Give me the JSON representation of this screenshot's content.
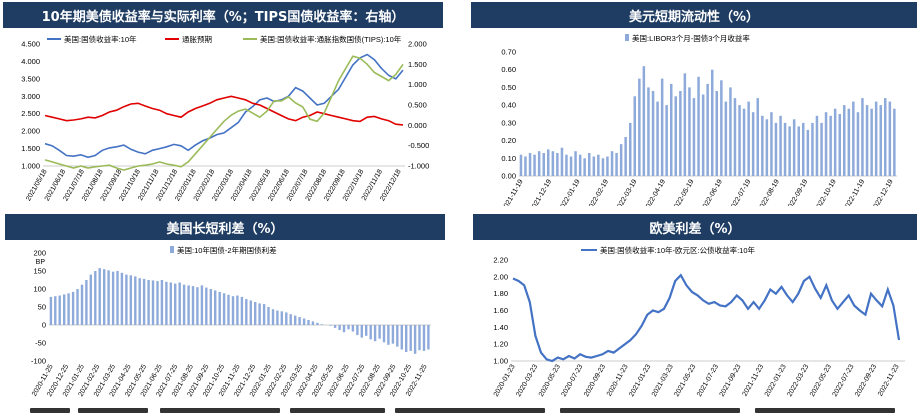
{
  "chart_data": [
    {
      "type": "line",
      "title": "10年期美债收益率与实际利率（%；TIPS国债收益率：右轴）",
      "left_ylim": [
        1.0,
        4.5
      ],
      "left_yticks": [
        "1.000",
        "1.500",
        "2.000",
        "2.500",
        "3.000",
        "3.500",
        "4.000",
        "4.500"
      ],
      "right_ylim": [
        -1.0,
        2.0
      ],
      "right_yticks": [
        "-1.000",
        "-0.500",
        "0.000",
        "0.500",
        "1.000",
        "1.500",
        "2.000"
      ],
      "x_ticks": [
        "2021/05/18",
        "2021/06/18",
        "2021/07/18",
        "2021/08/18",
        "2021/09/18",
        "2021/10/18",
        "2021/11/18",
        "2021/12/18",
        "2022/01/18",
        "2022/02/18",
        "2022/03/18",
        "2022/04/18",
        "2022/05/18",
        "2022/06/18",
        "2022/07/18",
        "2022/08/18",
        "2022/09/18",
        "2022/10/18",
        "2022/11/18",
        "2022/12/18"
      ],
      "series": [
        {
          "name": "美国:国债收益率:10年",
          "axis": "left",
          "color": "#4472c4",
          "values": [
            1.64,
            1.58,
            1.45,
            1.3,
            1.28,
            1.32,
            1.25,
            1.3,
            1.45,
            1.52,
            1.55,
            1.6,
            1.48,
            1.4,
            1.35,
            1.45,
            1.5,
            1.55,
            1.62,
            1.58,
            1.45,
            1.6,
            1.72,
            1.8,
            1.9,
            1.95,
            2.1,
            2.25,
            2.55,
            2.7,
            2.9,
            2.95,
            2.85,
            2.9,
            3.0,
            3.25,
            3.15,
            2.95,
            2.75,
            2.8,
            3.0,
            3.2,
            3.55,
            3.9,
            4.1,
            4.2,
            4.05,
            3.8,
            3.6,
            3.5,
            3.75
          ]
        },
        {
          "name": "通胀预期",
          "axis": "left",
          "color": "#e00000",
          "values": [
            2.45,
            2.4,
            2.35,
            2.3,
            2.32,
            2.35,
            2.4,
            2.38,
            2.45,
            2.55,
            2.6,
            2.7,
            2.78,
            2.8,
            2.72,
            2.65,
            2.6,
            2.5,
            2.45,
            2.4,
            2.55,
            2.65,
            2.72,
            2.8,
            2.9,
            2.95,
            3.0,
            2.95,
            2.9,
            2.8,
            2.75,
            2.65,
            2.55,
            2.45,
            2.35,
            2.3,
            2.4,
            2.45,
            2.55,
            2.5,
            2.45,
            2.4,
            2.35,
            2.3,
            2.28,
            2.4,
            2.42,
            2.35,
            2.3,
            2.2,
            2.18
          ]
        },
        {
          "name": "美国:国债收益率:通胀指数国债(TIPS):10年",
          "axis": "right",
          "color": "#9bbb59",
          "values": [
            -0.85,
            -0.9,
            -0.95,
            -1.0,
            -1.05,
            -1.0,
            -1.05,
            -1.02,
            -1.0,
            -0.98,
            -1.05,
            -1.1,
            -1.05,
            -1.0,
            -0.98,
            -0.95,
            -0.9,
            -0.95,
            -0.98,
            -1.02,
            -0.9,
            -0.7,
            -0.5,
            -0.3,
            -0.1,
            0.1,
            0.25,
            0.35,
            0.4,
            0.3,
            0.2,
            0.35,
            0.6,
            0.6,
            0.7,
            0.55,
            0.45,
            0.15,
            0.1,
            0.3,
            0.7,
            1.1,
            1.4,
            1.7,
            1.65,
            1.5,
            1.3,
            1.2,
            1.1,
            1.25,
            1.5
          ]
        }
      ]
    },
    {
      "type": "bar",
      "title": "美元短期流动性（%）",
      "ylim": [
        0.0,
        0.7
      ],
      "yticks": [
        "0.00",
        "0.10",
        "0.20",
        "0.30",
        "0.40",
        "0.50",
        "0.60",
        "0.70"
      ],
      "x_ticks": [
        "2021-11-19",
        "2021-12-19",
        "2022-01-19",
        "2022-02-19",
        "2022-03-19",
        "2022-04-19",
        "2022-05-19",
        "2022-06-19",
        "2022-07-19",
        "2022-08-19",
        "2022-09-19",
        "2022-10-19",
        "2022-11-19",
        "2022-12-19"
      ],
      "series": [
        {
          "name": "美国:LIBOR3个月-国债3个月收益率",
          "color": "#8eaadb",
          "values": [
            0.12,
            0.11,
            0.13,
            0.12,
            0.14,
            0.13,
            0.15,
            0.14,
            0.13,
            0.16,
            0.12,
            0.11,
            0.14,
            0.12,
            0.1,
            0.13,
            0.11,
            0.12,
            0.1,
            0.11,
            0.14,
            0.13,
            0.18,
            0.22,
            0.3,
            0.45,
            0.55,
            0.62,
            0.5,
            0.48,
            0.42,
            0.55,
            0.4,
            0.52,
            0.45,
            0.48,
            0.58,
            0.5,
            0.44,
            0.56,
            0.46,
            0.52,
            0.6,
            0.48,
            0.54,
            0.42,
            0.5,
            0.44,
            0.4,
            0.38,
            0.42,
            0.36,
            0.44,
            0.34,
            0.32,
            0.36,
            0.3,
            0.34,
            0.3,
            0.28,
            0.32,
            0.28,
            0.3,
            0.26,
            0.3,
            0.34,
            0.3,
            0.36,
            0.34,
            0.38,
            0.35,
            0.4,
            0.38,
            0.42,
            0.36,
            0.44,
            0.4,
            0.38,
            0.42,
            0.4,
            0.44,
            0.42,
            0.38
          ]
        }
      ]
    },
    {
      "type": "bar",
      "title": "美国长短利差（%）",
      "ylim": [
        -100,
        200
      ],
      "yticks": [
        "-100",
        "-50",
        "0",
        "50",
        "100",
        "150",
        "200"
      ],
      "y_unit": "BP",
      "x_ticks": [
        "2020-11-25",
        "2020-12-25",
        "2021-01-25",
        "2021-02-25",
        "2021-03-25",
        "2021-04-25",
        "2021-05-25",
        "2021-06-25",
        "2021-07-25",
        "2021-08-25",
        "2021-09-25",
        "2021-10-25",
        "2021-11-25",
        "2021-12-25",
        "2022-01-25",
        "2022-02-25",
        "2022-03-25",
        "2022-04-25",
        "2022-05-25",
        "2022-06-25",
        "2022-07-25",
        "2022-08-25",
        "2022-09-25",
        "2022-10-25",
        "2022-11-25"
      ],
      "series": [
        {
          "name": "美国:10年国债-2年期国债利差",
          "color": "#8eaadb",
          "values": [
            78,
            80,
            82,
            85,
            88,
            92,
            100,
            112,
            125,
            140,
            150,
            158,
            155,
            152,
            148,
            150,
            145,
            140,
            138,
            135,
            130,
            128,
            125,
            124,
            122,
            125,
            120,
            118,
            115,
            118,
            112,
            110,
            108,
            105,
            110,
            104,
            100,
            96,
            92,
            88,
            84,
            80,
            82,
            78,
            72,
            68,
            64,
            60,
            58,
            50,
            44,
            40,
            38,
            35,
            30,
            26,
            22,
            18,
            14,
            10,
            6,
            2,
            0,
            -2,
            -8,
            -14,
            -20,
            -12,
            -18,
            -28,
            -35,
            -30,
            -40,
            -45,
            -38,
            -48,
            -55,
            -52,
            -60,
            -68,
            -75,
            -72,
            -80,
            -70,
            -72,
            -68
          ]
        }
      ]
    },
    {
      "type": "line",
      "title": "欧美利差（%）",
      "ylim": [
        1.0,
        2.2
      ],
      "yticks": [
        "1.00",
        "1.20",
        "1.40",
        "1.60",
        "1.80",
        "2.00",
        "2.20"
      ],
      "x_ticks": [
        "2020-01-23",
        "2020-03-23",
        "2020-05-23",
        "2020-07-23",
        "2020-09-23",
        "2020-11-23",
        "2021-01-23",
        "2021-03-23",
        "2021-05-23",
        "2021-07-23",
        "2021-09-23",
        "2021-11-23",
        "2022-01-23",
        "2022-03-23",
        "2022-05-23",
        "2022-07-23",
        "2022-09-23",
        "2022-11-23"
      ],
      "series": [
        {
          "name": "美国:国债收益率:10年-欧元区:公债收益率:10年",
          "color": "#4472c4",
          "values": [
            1.98,
            1.95,
            1.9,
            1.7,
            1.3,
            1.1,
            1.02,
            1.0,
            1.04,
            1.02,
            1.06,
            1.03,
            1.08,
            1.05,
            1.04,
            1.06,
            1.08,
            1.12,
            1.1,
            1.15,
            1.2,
            1.25,
            1.32,
            1.42,
            1.55,
            1.6,
            1.58,
            1.62,
            1.75,
            1.95,
            2.02,
            1.9,
            1.82,
            1.78,
            1.72,
            1.68,
            1.7,
            1.66,
            1.65,
            1.7,
            1.78,
            1.72,
            1.62,
            1.7,
            1.62,
            1.72,
            1.85,
            1.8,
            1.88,
            1.78,
            1.7,
            1.8,
            1.95,
            2.0,
            1.86,
            1.75,
            1.9,
            1.72,
            1.62,
            1.7,
            1.78,
            1.66,
            1.6,
            1.55,
            1.8,
            1.72,
            1.65,
            1.85,
            1.66,
            1.25
          ]
        }
      ]
    }
  ]
}
